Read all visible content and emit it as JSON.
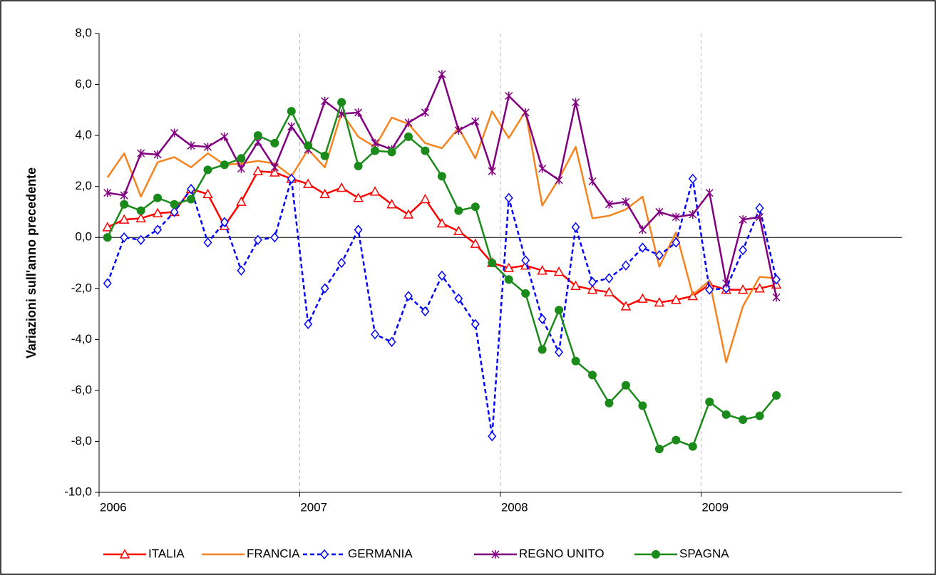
{
  "chart_data": {
    "type": "line",
    "y_label": "Variazioni sull'anno precedente",
    "categories": [
      "2006",
      null,
      null,
      null,
      null,
      null,
      null,
      null,
      null,
      null,
      null,
      null,
      "2007",
      null,
      null,
      null,
      null,
      null,
      null,
      null,
      null,
      null,
      null,
      null,
      "2008",
      null,
      null,
      null,
      null,
      null,
      null,
      null,
      null,
      null,
      null,
      null,
      "2009",
      null,
      null,
      null,
      null,
      null,
      null,
      null,
      null,
      null,
      null,
      null
    ],
    "ylim": [
      -10,
      8
    ],
    "yticks": [
      {
        "value": 8,
        "label": "8,0"
      },
      {
        "value": 6,
        "label": "6,0"
      },
      {
        "value": 4,
        "label": "4,0"
      },
      {
        "value": 2,
        "label": "2,0"
      },
      {
        "value": 0,
        "label": "0,0"
      },
      {
        "value": -2,
        "label": "-2,0"
      },
      {
        "value": -4,
        "label": "-4,0"
      },
      {
        "value": -6,
        "label": "-6,0"
      },
      {
        "value": -8,
        "label": "-8,0"
      },
      {
        "value": -10,
        "label": "-10,0"
      }
    ],
    "legend": "bottom",
    "series": [
      {
        "name": "ITALIA",
        "color": "#ff0000",
        "marker": "triangle",
        "dashed": false,
        "values": [
          0.4,
          0.7,
          0.75,
          0.95,
          1.0,
          1.9,
          1.7,
          0.45,
          1.4,
          2.6,
          2.55,
          2.3,
          2.1,
          1.7,
          1.95,
          1.55,
          1.8,
          1.3,
          0.9,
          1.5,
          0.55,
          0.25,
          -0.25,
          -1.0,
          -1.2,
          -1.1,
          -1.3,
          -1.35,
          -1.9,
          -2.05,
          -2.15,
          -2.7,
          -2.4,
          -2.55,
          -2.45,
          -2.3,
          -1.85,
          -2.05,
          -2.05,
          -2.0,
          -1.85,
          null,
          null,
          null,
          null,
          null,
          null,
          null
        ]
      },
      {
        "name": "FRANCIA",
        "color": "#f7831e",
        "marker": "none",
        "dashed": false,
        "values": [
          2.35,
          3.3,
          1.6,
          2.95,
          3.15,
          2.75,
          3.3,
          2.85,
          2.9,
          3.0,
          2.9,
          2.4,
          3.45,
          2.75,
          4.9,
          3.95,
          3.55,
          4.7,
          4.45,
          3.7,
          3.5,
          4.3,
          3.1,
          4.95,
          3.9,
          4.95,
          1.25,
          2.3,
          3.55,
          0.75,
          0.85,
          1.1,
          1.6,
          -1.15,
          0.2,
          -2.25,
          -1.7,
          -4.9,
          -2.7,
          -1.55,
          -1.6,
          null,
          null,
          null,
          null,
          null,
          null,
          null
        ]
      },
      {
        "name": "GERMANIA",
        "color": "#0000ff",
        "marker": "diamond",
        "dashed": true,
        "values": [
          -1.8,
          0.0,
          -0.1,
          0.3,
          1.0,
          1.9,
          -0.2,
          0.6,
          -1.3,
          -0.1,
          0.0,
          2.3,
          -3.4,
          -2.0,
          -1.0,
          0.3,
          -3.8,
          -4.1,
          -2.3,
          -2.9,
          -1.5,
          -2.4,
          -3.4,
          -7.8,
          1.55,
          -0.9,
          -3.2,
          -4.5,
          0.4,
          -1.75,
          -1.6,
          -1.1,
          -0.4,
          -0.7,
          -0.2,
          2.3,
          -2.05,
          -2.0,
          -0.5,
          1.15,
          -1.65,
          null,
          null,
          null,
          null,
          null,
          null,
          null
        ]
      },
      {
        "name": "REGNO UNITO",
        "color": "#800080",
        "marker": "asterisk",
        "dashed": false,
        "values": [
          1.75,
          1.65,
          3.3,
          3.25,
          4.1,
          3.6,
          3.55,
          3.95,
          2.7,
          3.75,
          2.75,
          4.35,
          3.45,
          5.35,
          4.85,
          4.9,
          3.7,
          3.45,
          4.5,
          4.9,
          6.4,
          4.2,
          4.55,
          2.6,
          5.55,
          4.9,
          2.7,
          2.25,
          5.3,
          2.2,
          1.3,
          1.4,
          0.3,
          1.0,
          0.8,
          0.9,
          1.75,
          -1.8,
          0.7,
          0.8,
          -2.35,
          null,
          null,
          null,
          null,
          null,
          null,
          null
        ]
      },
      {
        "name": "SPAGNA",
        "color": "#1a8a1a",
        "marker": "circle",
        "dashed": false,
        "values": [
          0.0,
          1.3,
          1.05,
          1.55,
          1.3,
          1.5,
          2.65,
          2.85,
          3.1,
          4.0,
          3.7,
          4.95,
          3.6,
          3.2,
          5.3,
          2.8,
          3.4,
          3.35,
          3.95,
          3.4,
          2.4,
          1.05,
          1.2,
          -1.0,
          -1.65,
          -2.2,
          -4.4,
          -2.85,
          -4.85,
          -5.4,
          -6.5,
          -5.8,
          -6.6,
          -8.3,
          -7.95,
          -8.2,
          -6.45,
          -6.95,
          -7.15,
          -7.0,
          -6.2,
          null,
          null,
          null,
          null,
          null,
          null,
          null
        ]
      }
    ]
  }
}
